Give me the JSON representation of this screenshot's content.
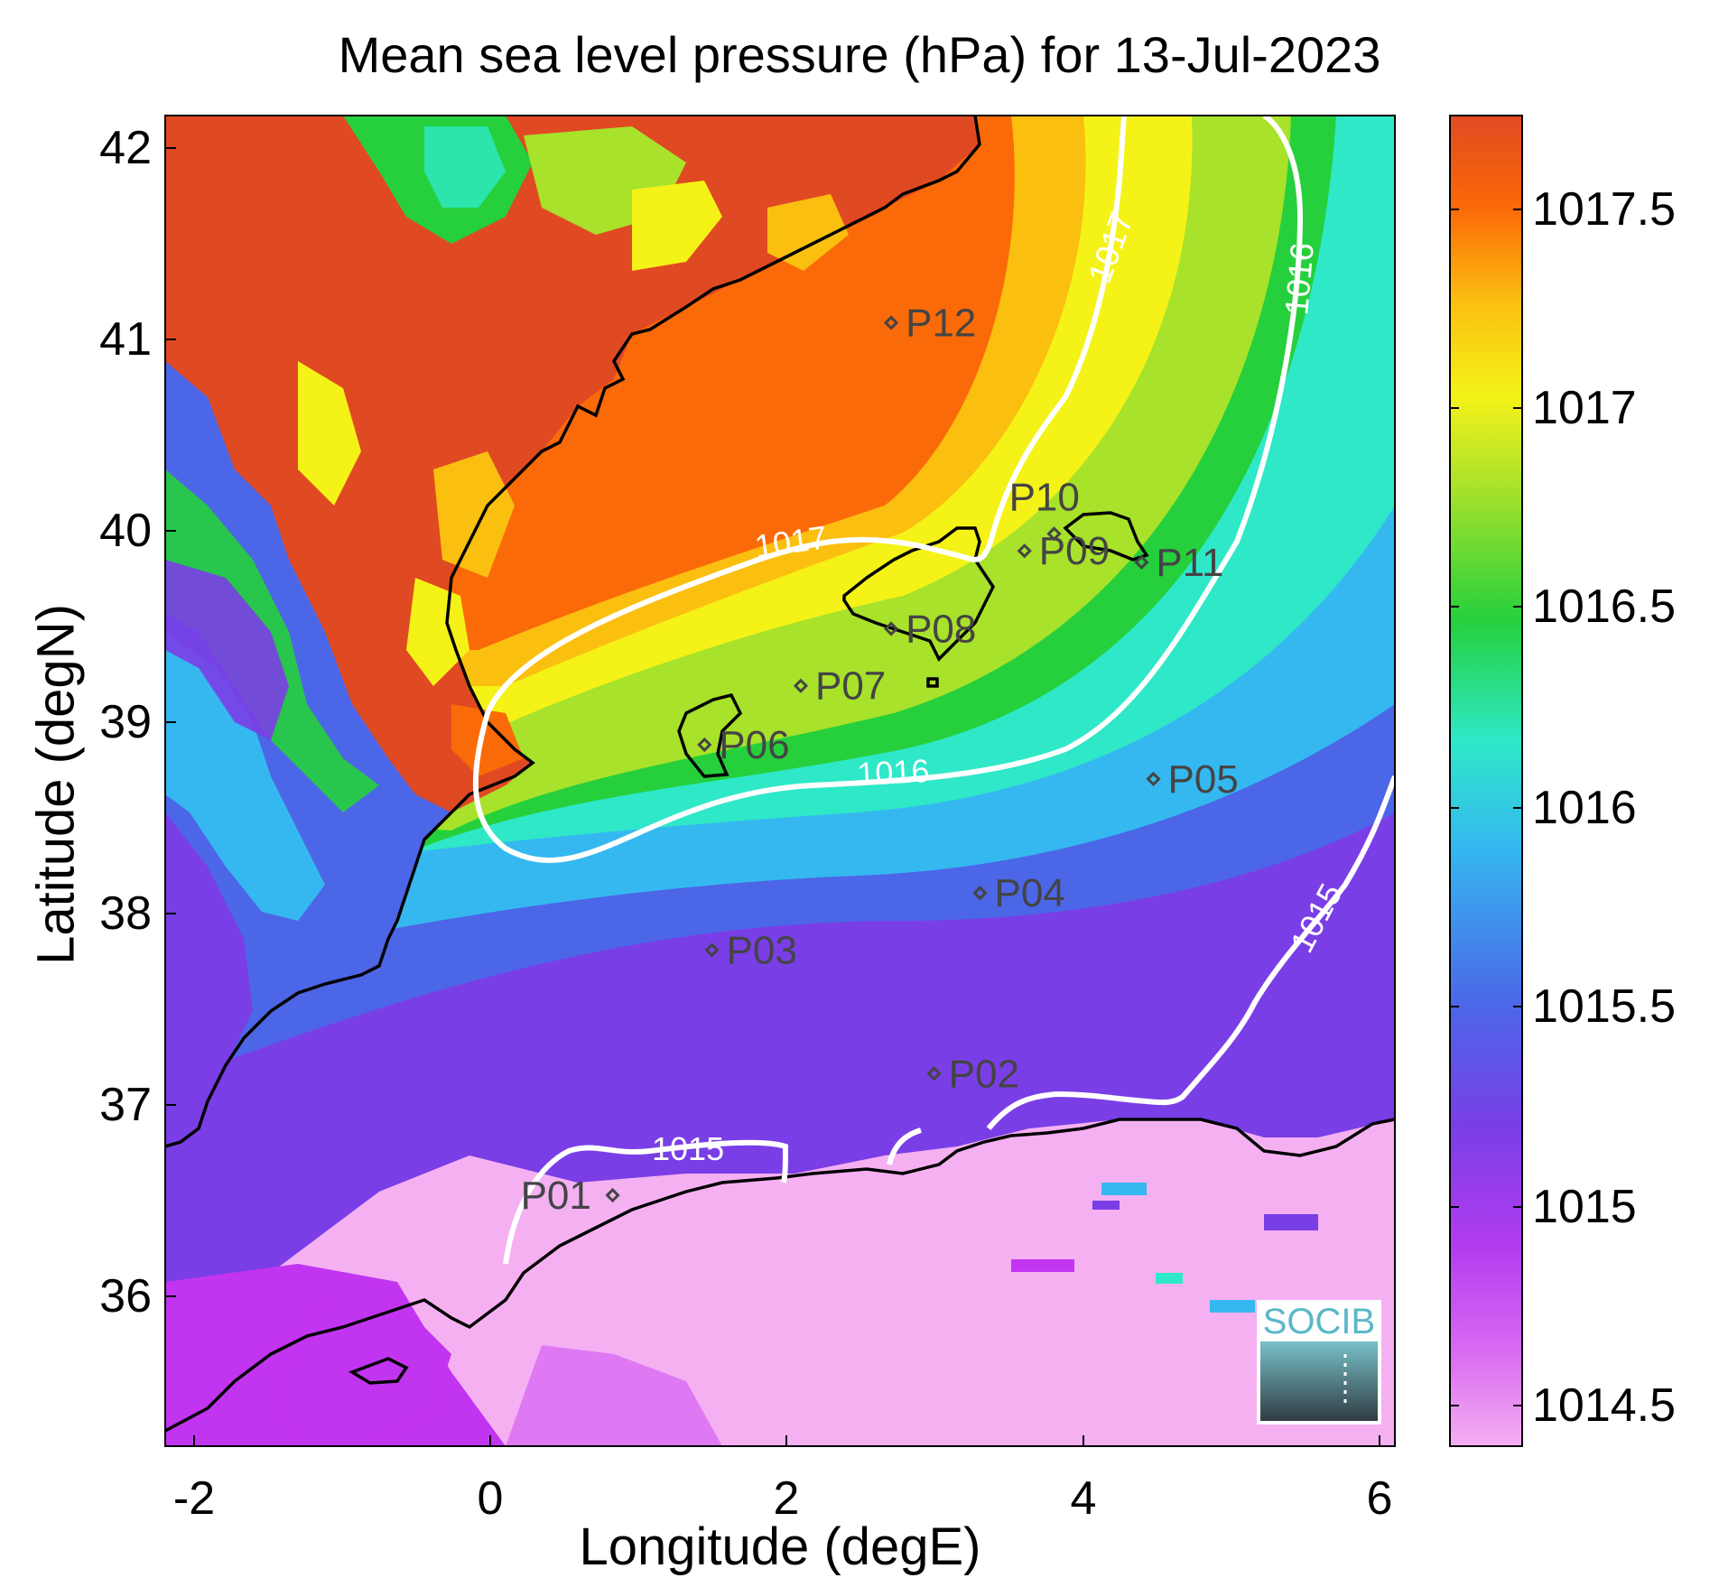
{
  "title": "Mean sea level pressure (hPa) for 13-Jul-2023",
  "xlabel": "Longitude (degE)",
  "ylabel": "Latitude (degN)",
  "x_ticks": [
    "-2",
    "0",
    "2",
    "4",
    "6"
  ],
  "y_ticks": [
    "42",
    "41",
    "40",
    "39",
    "38",
    "37",
    "36"
  ],
  "colorbar_ticks": [
    "1017.5",
    "1017",
    "1016.5",
    "1016",
    "1015",
    "1014.5"
  ],
  "colorbar_ticks_extra": [
    "1015.5"
  ],
  "logo_text": "SOCIB",
  "points": [
    {
      "label": "P01",
      "lon": 0.82,
      "lat": 36.52
    },
    {
      "label": "P02",
      "lon": 2.99,
      "lat": 37.16
    },
    {
      "label": "P03",
      "lon": 1.49,
      "lat": 37.81
    },
    {
      "label": "P04",
      "lon": 3.3,
      "lat": 38.11
    },
    {
      "label": "P05",
      "lon": 4.47,
      "lat": 38.71
    },
    {
      "label": "P06",
      "lon": 1.44,
      "lat": 38.89
    },
    {
      "label": "P07",
      "lon": 2.09,
      "lat": 39.2
    },
    {
      "label": "P08",
      "lon": 2.7,
      "lat": 39.5
    },
    {
      "label": "P09",
      "lon": 3.6,
      "lat": 39.91
    },
    {
      "label": "P10",
      "lon": 3.8,
      "lat": 40.0
    },
    {
      "label": "P11",
      "lon": 4.39,
      "lat": 39.85
    },
    {
      "label": "P12",
      "lon": 2.7,
      "lat": 41.11
    }
  ],
  "contour_labels": [
    "1017",
    "1017",
    "1016",
    "1016",
    "1015",
    "1015"
  ],
  "map": {
    "lon_range": [
      -2.2,
      6.1
    ],
    "lat_range": [
      35.2,
      42.2
    ],
    "colorbar_range": [
      1014.4,
      1017.75
    ],
    "colormap": [
      "#f5b0f2",
      "#c235f0",
      "#7a3ee6",
      "#4c66e8",
      "#35b8f0",
      "#2ee8c8",
      "#25d03c",
      "#a8e22a",
      "#f5f218",
      "#fbbf10",
      "#fb6a08",
      "#e04a22"
    ]
  }
}
